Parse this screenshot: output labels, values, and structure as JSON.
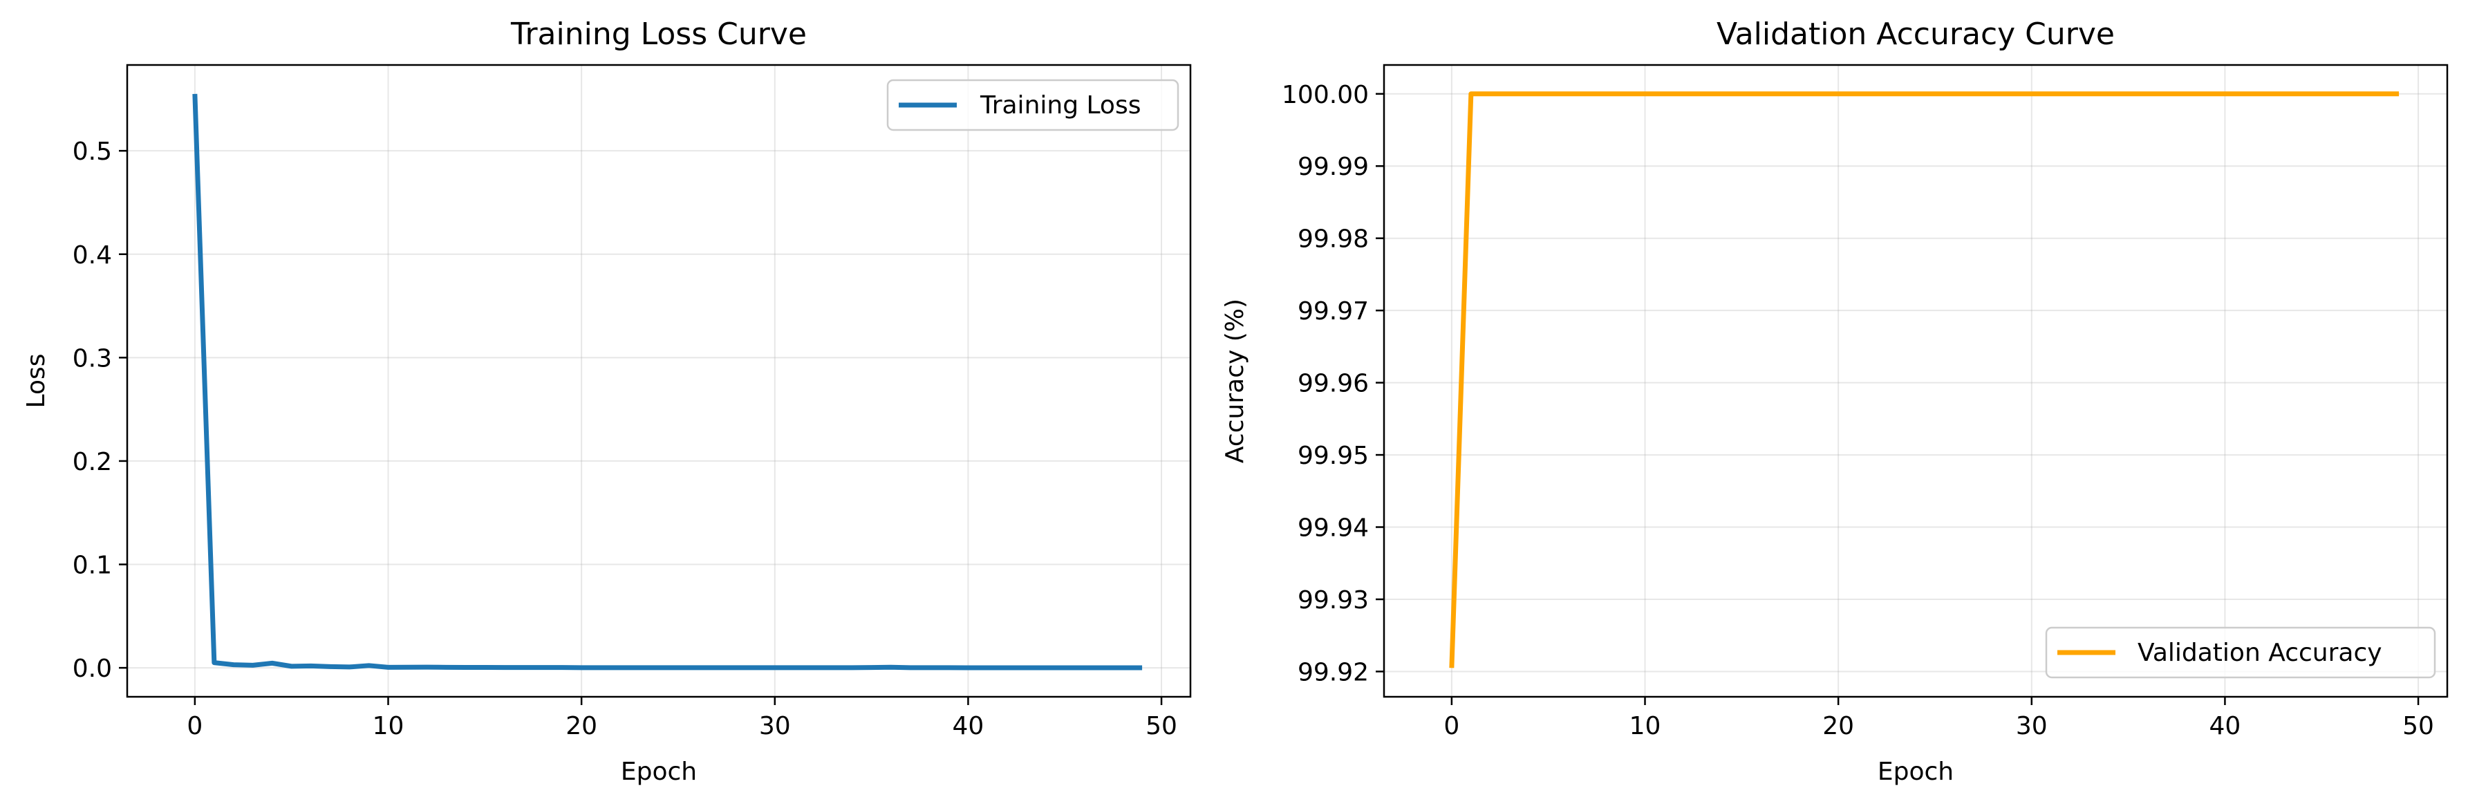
{
  "chart_data": [
    {
      "type": "line",
      "title": "Training Loss Curve",
      "xlabel": "Epoch",
      "ylabel": "Loss",
      "xlim": [
        -3.5,
        51.5
      ],
      "ylim": [
        -0.028,
        0.583
      ],
      "xticks": [
        0,
        10,
        20,
        30,
        40,
        50
      ],
      "xtick_labels": [
        "0",
        "10",
        "20",
        "30",
        "40",
        "50"
      ],
      "yticks": [
        0.0,
        0.1,
        0.2,
        0.3,
        0.4,
        0.5
      ],
      "ytick_labels": [
        "0.0",
        "0.1",
        "0.2",
        "0.3",
        "0.4",
        "0.5"
      ],
      "grid": true,
      "legend_position": "upper right",
      "series": [
        {
          "name": "Training Loss",
          "color": "#1f77b4",
          "x": [
            0,
            1,
            2,
            3,
            4,
            5,
            6,
            7,
            8,
            9,
            10,
            11,
            12,
            13,
            14,
            15,
            16,
            17,
            18,
            19,
            20,
            21,
            22,
            23,
            24,
            25,
            26,
            27,
            28,
            29,
            30,
            31,
            32,
            33,
            34,
            35,
            36,
            37,
            38,
            39,
            40,
            41,
            42,
            43,
            44,
            45,
            46,
            47,
            48,
            49
          ],
          "y": [
            0.555,
            0.005,
            0.003,
            0.0025,
            0.0045,
            0.0015,
            0.0018,
            0.0012,
            0.0008,
            0.0022,
            0.0005,
            0.0006,
            0.0007,
            0.0005,
            0.0004,
            0.0004,
            0.0003,
            0.0003,
            0.0003,
            0.0003,
            0.0002,
            0.0002,
            0.0002,
            0.0002,
            0.0002,
            0.0002,
            0.0002,
            0.0002,
            0.0002,
            0.0002,
            0.0002,
            0.0002,
            0.0002,
            0.0002,
            0.0002,
            0.0003,
            0.0006,
            0.0002,
            0.0002,
            0.0002,
            0.0001,
            0.0001,
            0.0001,
            0.0001,
            0.0001,
            0.0001,
            0.0001,
            0.0001,
            0.0001,
            0.0001
          ]
        }
      ]
    },
    {
      "type": "line",
      "title": "Validation Accuracy Curve",
      "xlabel": "Epoch",
      "ylabel": "Accuracy (%)",
      "xlim": [
        -3.5,
        51.5
      ],
      "ylim": [
        99.9165,
        100.004
      ],
      "xticks": [
        0,
        10,
        20,
        30,
        40,
        50
      ],
      "xtick_labels": [
        "0",
        "10",
        "20",
        "30",
        "40",
        "50"
      ],
      "yticks": [
        99.92,
        99.93,
        99.94,
        99.95,
        99.96,
        99.97,
        99.98,
        99.99,
        100.0
      ],
      "ytick_labels": [
        "99.92",
        "99.93",
        "99.94",
        "99.95",
        "99.96",
        "99.97",
        "99.98",
        "99.99",
        "100.00"
      ],
      "grid": true,
      "legend_position": "lower right",
      "series": [
        {
          "name": "Validation Accuracy",
          "color": "#ffa500",
          "x": [
            0,
            1,
            2,
            3,
            4,
            5,
            6,
            7,
            8,
            9,
            10,
            11,
            12,
            13,
            14,
            15,
            16,
            17,
            18,
            19,
            20,
            21,
            22,
            23,
            24,
            25,
            26,
            27,
            28,
            29,
            30,
            31,
            32,
            33,
            34,
            35,
            36,
            37,
            38,
            39,
            40,
            41,
            42,
            43,
            44,
            45,
            46,
            47,
            48,
            49
          ],
          "y": [
            99.9205,
            100.0,
            100.0,
            100.0,
            100.0,
            100.0,
            100.0,
            100.0,
            100.0,
            100.0,
            100.0,
            100.0,
            100.0,
            100.0,
            100.0,
            100.0,
            100.0,
            100.0,
            100.0,
            100.0,
            100.0,
            100.0,
            100.0,
            100.0,
            100.0,
            100.0,
            100.0,
            100.0,
            100.0,
            100.0,
            100.0,
            100.0,
            100.0,
            100.0,
            100.0,
            100.0,
            100.0,
            100.0,
            100.0,
            100.0,
            100.0,
            100.0,
            100.0,
            100.0,
            100.0,
            100.0,
            100.0,
            100.0,
            100.0,
            100.0
          ]
        }
      ]
    }
  ]
}
